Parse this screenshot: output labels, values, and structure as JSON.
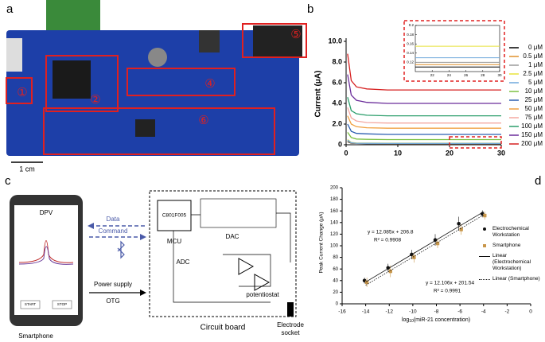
{
  "panel_labels": [
    "a",
    "b",
    "c",
    "d"
  ],
  "board": {
    "scale_label": "1 cm",
    "markers": [
      "①",
      "②",
      "④",
      "⑤",
      "⑥"
    ]
  },
  "system": {
    "phone_title": "DPV",
    "start": "START",
    "stop": "STOP",
    "smartphone": "Smartphone",
    "data": "Data",
    "command": "Command",
    "power_supply": "Power supply",
    "otg": "OTG",
    "chip": "C801F005",
    "mcu": "MCU",
    "dac": "DAC",
    "adc": "ADC",
    "potentiostat": "potentiostat",
    "circuit_board": "Circuit board",
    "electrode_socket": [
      "Electrode",
      "socket"
    ]
  },
  "chart_data": [
    {
      "type": "line",
      "ylabel": "Current (μA)",
      "xlim": [
        0,
        30
      ],
      "xticks": [
        0,
        10,
        20,
        30
      ],
      "ylim": [
        0,
        10
      ],
      "yticks": [
        0,
        {
          "value": 2,
          "label": "2.0"
        },
        {
          "value": 4,
          "label": "4.0"
        },
        {
          "value": 6,
          "label": "6.0"
        },
        {
          "value": 8,
          "label": "8.0"
        },
        {
          "value": 10,
          "label": "10.0"
        }
      ],
      "x": [
        0.3,
        1,
        2,
        4,
        8,
        15,
        22,
        30
      ],
      "series": [
        {
          "name": "0 μM",
          "color": "#000000",
          "values": [
            0.3,
            0.15,
            0.12,
            0.11,
            0.11,
            0.11,
            0.11,
            0.11
          ]
        },
        {
          "name": "0.5 μM",
          "color": "#e0902a",
          "values": [
            0.35,
            0.17,
            0.13,
            0.12,
            0.115,
            0.115,
            0.115,
            0.115
          ]
        },
        {
          "name": "1 μM",
          "color": "#9a9a9a",
          "values": [
            0.4,
            0.18,
            0.14,
            0.125,
            0.12,
            0.12,
            0.12,
            0.12
          ]
        },
        {
          "name": "2.5 μM",
          "color": "#e8e23a",
          "values": [
            0.5,
            0.22,
            0.17,
            0.16,
            0.155,
            0.155,
            0.155,
            0.155
          ]
        },
        {
          "name": "5 μM",
          "color": "#6fa8dc",
          "values": [
            0.45,
            0.2,
            0.15,
            0.135,
            0.13,
            0.13,
            0.13,
            0.13
          ]
        },
        {
          "name": "10 μM",
          "color": "#7cc142",
          "values": [
            1.2,
            0.7,
            0.55,
            0.52,
            0.5,
            0.5,
            0.5,
            0.5
          ]
        },
        {
          "name": "25 μM",
          "color": "#2c5fb0",
          "values": [
            2.0,
            1.3,
            1.1,
            1.05,
            1.0,
            1.0,
            1.0,
            1.0
          ]
        },
        {
          "name": "50 μM",
          "color": "#f0a040",
          "values": [
            2.8,
            2.0,
            1.75,
            1.65,
            1.6,
            1.6,
            1.6,
            1.6
          ]
        },
        {
          "name": "75 μM",
          "color": "#f4a8a0",
          "values": [
            3.6,
            2.6,
            2.3,
            2.15,
            2.1,
            2.1,
            2.1,
            2.1
          ]
        },
        {
          "name": "100 μM",
          "color": "#2a9d6a",
          "values": [
            4.6,
            3.3,
            3.0,
            2.85,
            2.8,
            2.8,
            2.8,
            2.8
          ]
        },
        {
          "name": "150 μM",
          "color": "#6a2c9a",
          "values": [
            6.8,
            4.8,
            4.3,
            4.1,
            4.0,
            4.0,
            4.0,
            4.0
          ]
        },
        {
          "name": "200 μM",
          "color": "#d62020",
          "values": [
            8.8,
            6.2,
            5.6,
            5.4,
            5.3,
            5.3,
            5.3,
            5.3
          ]
        }
      ],
      "inset": {
        "xlim": [
          20,
          30
        ],
        "xticks": [
          22,
          24,
          26,
          28,
          30
        ],
        "ylim": [
          0.1,
          0.2
        ],
        "yticks": [
          0.12,
          0.14,
          0.16,
          0.18,
          0.2
        ]
      }
    },
    {
      "type": "scatter",
      "ylabel": "Peak Current Change (μA)",
      "xlabel": "log",
      "xlabel_sub": "10",
      "xlabel_rest": "(miR-21 concentration)",
      "xlim": [
        -16,
        0
      ],
      "xticks": [
        -16,
        -14,
        -12,
        -10,
        -8,
        -6,
        -4,
        -2,
        0
      ],
      "ylim": [
        0,
        200
      ],
      "yticks": [
        0,
        20,
        40,
        60,
        80,
        100,
        120,
        140,
        160,
        180,
        200
      ],
      "series": [
        {
          "name": "Electrochemical Workstation",
          "color": "#111111",
          "marker": "circle",
          "x": [
            -14,
            -12,
            -10,
            -8,
            -6,
            -4
          ],
          "values": [
            40,
            62,
            85,
            110,
            138,
            155
          ],
          "errors": [
            5,
            7,
            8,
            10,
            12,
            6
          ]
        },
        {
          "name": "Smartphone",
          "color": "#c8964a",
          "marker": "square",
          "x": [
            -14,
            -12,
            -10,
            -8,
            -6,
            -4
          ],
          "values": [
            37,
            56,
            80,
            104,
            128,
            152
          ],
          "errors": [
            8,
            10,
            9,
            8,
            9,
            7
          ]
        },
        {
          "name": "Linear (Electrochemical Workstation)",
          "color": "#111111",
          "marker": "solid",
          "x": [
            -14,
            -4
          ],
          "values": [
            37.61,
            158.46
          ]
        },
        {
          "name": "Linear (Smartphone)",
          "color": "#111111",
          "marker": "dotted",
          "x": [
            -14,
            -4
          ],
          "values": [
            32.06,
            153.12
          ]
        }
      ],
      "annotations": [
        "y = 12.085x + 206.8",
        "R² = 0.9908",
        "y = 12.106x + 201.54",
        "R² = 0.9991"
      ]
    }
  ]
}
